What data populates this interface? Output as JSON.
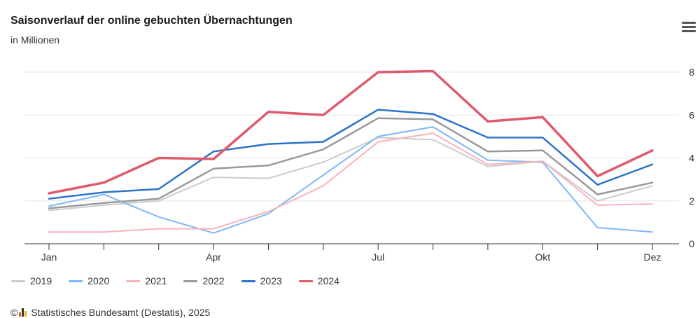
{
  "header": {
    "title": "Saisonverlauf der online gebuchten Übernachtungen",
    "subtitle": "in Millionen",
    "menu_icon": "hamburger-menu-icon"
  },
  "chart_data": {
    "type": "line",
    "x": [
      "Jan",
      "Feb",
      "Mär",
      "Apr",
      "Mai",
      "Jun",
      "Jul",
      "Aug",
      "Sep",
      "Okt",
      "Nov",
      "Dez"
    ],
    "x_tick_labels": [
      "Jan",
      "",
      "",
      "Apr",
      "",
      "",
      "Jul",
      "",
      "",
      "Okt",
      "",
      "Dez"
    ],
    "ylim": [
      0,
      8
    ],
    "y_ticks": [
      0,
      2,
      4,
      6,
      8
    ],
    "y_axis_side": "right",
    "grid": true,
    "legend_position": "bottom-left",
    "series": [
      {
        "name": "2019",
        "color": "#cccccc",
        "width": 2,
        "values": [
          1.55,
          1.8,
          2.0,
          3.1,
          3.05,
          3.8,
          4.95,
          4.85,
          3.6,
          3.85,
          2.0,
          2.7
        ]
      },
      {
        "name": "2020",
        "color": "#7db9f5",
        "width": 2,
        "values": [
          1.75,
          2.3,
          1.25,
          0.5,
          1.4,
          3.2,
          5.0,
          5.45,
          3.9,
          3.8,
          0.75,
          0.55
        ]
      },
      {
        "name": "2021",
        "color": "#f7b3bb",
        "width": 2,
        "values": [
          0.55,
          0.55,
          0.7,
          0.7,
          1.5,
          2.7,
          4.75,
          5.15,
          3.7,
          3.85,
          1.8,
          1.85
        ]
      },
      {
        "name": "2022",
        "color": "#999999",
        "width": 2.5,
        "values": [
          1.65,
          1.9,
          2.1,
          3.5,
          3.65,
          4.4,
          5.85,
          5.8,
          4.3,
          4.35,
          2.3,
          2.85
        ]
      },
      {
        "name": "2023",
        "color": "#2e73c9",
        "width": 2.5,
        "values": [
          2.1,
          2.4,
          2.55,
          4.3,
          4.65,
          4.75,
          6.25,
          6.05,
          4.95,
          4.95,
          2.75,
          3.7
        ]
      },
      {
        "name": "2024",
        "color": "#e05a6d",
        "width": 3.5,
        "values": [
          2.35,
          2.85,
          4.0,
          3.95,
          6.15,
          6.0,
          8.0,
          8.05,
          5.7,
          5.9,
          3.15,
          4.35
        ]
      }
    ]
  },
  "footer": {
    "copyright": "©",
    "source": "Statistisches Bundesamt (Destatis), 2025"
  }
}
